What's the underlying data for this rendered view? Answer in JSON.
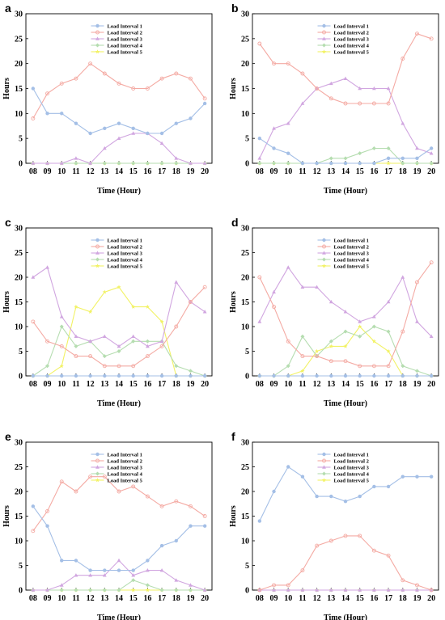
{
  "series_names": [
    "Load Interval 1",
    "Load Interval 2",
    "Load Interval 3",
    "Load Interval 4",
    "Load Interval 5"
  ],
  "series_colors": [
    "#a4bfe6",
    "#f4aaa3",
    "#d1a6e0",
    "#b5ddb0",
    "#f2f265"
  ],
  "chart_data": [
    {
      "panel": "a",
      "type": "line",
      "x": [
        "08",
        "09",
        "10",
        "11",
        "12",
        "13",
        "14",
        "15",
        "16",
        "17",
        "18",
        "19",
        "20"
      ],
      "xlabel": "Time (Hour)",
      "ylabel": "Hours",
      "ylim": [
        0,
        30
      ],
      "yticks": [
        0,
        5,
        10,
        15,
        20,
        25,
        30
      ],
      "legend": "top-center",
      "grid": false,
      "series": [
        {
          "name": "Load Interval 1",
          "values": [
            15,
            10,
            10,
            8,
            6,
            7,
            8,
            7,
            6,
            6,
            8,
            9,
            12
          ]
        },
        {
          "name": "Load Interval 2",
          "values": [
            9,
            14,
            16,
            17,
            20,
            18,
            16,
            15,
            15,
            17,
            18,
            17,
            13
          ]
        },
        {
          "name": "Load Interval 3",
          "values": [
            0,
            0,
            0,
            1,
            0,
            3,
            5,
            6,
            6,
            4,
            1,
            0,
            0
          ]
        },
        {
          "name": "Load Interval 4",
          "values": [
            0,
            0,
            0,
            0,
            0,
            0,
            0,
            0,
            0,
            0,
            0,
            0,
            0
          ]
        },
        {
          "name": "Load Interval 5",
          "values": [
            0,
            0,
            0,
            0,
            0,
            0,
            0,
            0,
            0,
            0,
            0,
            0,
            0
          ]
        }
      ]
    },
    {
      "panel": "b",
      "type": "line",
      "x": [
        "08",
        "09",
        "10",
        "11",
        "12",
        "13",
        "14",
        "15",
        "16",
        "17",
        "18",
        "19",
        "20"
      ],
      "xlabel": "Time (Hour)",
      "ylabel": "Hours",
      "ylim": [
        0,
        30
      ],
      "yticks": [
        0,
        5,
        10,
        15,
        20,
        25,
        30
      ],
      "legend": "top-center",
      "grid": false,
      "series": [
        {
          "name": "Load Interval 1",
          "values": [
            5,
            3,
            2,
            0,
            0,
            0,
            0,
            0,
            0,
            1,
            1,
            1,
            3
          ]
        },
        {
          "name": "Load Interval 2",
          "values": [
            24,
            20,
            20,
            18,
            15,
            13,
            12,
            12,
            12,
            12,
            21,
            26,
            25
          ]
        },
        {
          "name": "Load Interval 3",
          "values": [
            1,
            7,
            8,
            12,
            15,
            16,
            17,
            15,
            15,
            15,
            8,
            3,
            2
          ]
        },
        {
          "name": "Load Interval 4",
          "values": [
            0,
            0,
            0,
            0,
            0,
            1,
            1,
            2,
            3,
            3,
            0,
            0,
            0
          ]
        },
        {
          "name": "Load Interval 5",
          "values": [
            0,
            0,
            0,
            0,
            0,
            0,
            0,
            0,
            0,
            0,
            0,
            0,
            0
          ]
        }
      ]
    },
    {
      "panel": "c",
      "type": "line",
      "x": [
        "08",
        "09",
        "10",
        "11",
        "12",
        "13",
        "14",
        "15",
        "16",
        "17",
        "18",
        "19",
        "20"
      ],
      "xlabel": "Time (Hour)",
      "ylabel": "Hours",
      "ylim": [
        0,
        30
      ],
      "yticks": [
        0,
        5,
        10,
        15,
        20,
        25,
        30
      ],
      "legend": "top-center",
      "grid": false,
      "series": [
        {
          "name": "Load Interval 1",
          "values": [
            0,
            0,
            0,
            0,
            0,
            0,
            0,
            0,
            0,
            0,
            0,
            0,
            0
          ]
        },
        {
          "name": "Load Interval 2",
          "values": [
            11,
            7,
            6,
            4,
            4,
            2,
            2,
            2,
            4,
            6,
            10,
            15,
            18
          ]
        },
        {
          "name": "Load Interval 3",
          "values": [
            20,
            22,
            12,
            8,
            7,
            8,
            6,
            8,
            6,
            7,
            19,
            15,
            13
          ]
        },
        {
          "name": "Load Interval 4",
          "values": [
            0,
            2,
            10,
            6,
            7,
            4,
            5,
            7,
            7,
            7,
            2,
            1,
            0
          ]
        },
        {
          "name": "Load Interval 5",
          "values": [
            0,
            0,
            2,
            14,
            13,
            17,
            18,
            14,
            14,
            11,
            0,
            0,
            0
          ]
        }
      ]
    },
    {
      "panel": "d",
      "type": "line",
      "x": [
        "08",
        "09",
        "10",
        "11",
        "12",
        "13",
        "14",
        "15",
        "16",
        "17",
        "18",
        "19",
        "20"
      ],
      "xlabel": "Time (Hour)",
      "ylabel": "Hours",
      "ylim": [
        0,
        30
      ],
      "yticks": [
        0,
        5,
        10,
        15,
        20,
        25,
        30
      ],
      "legend": "top-center",
      "grid": false,
      "series": [
        {
          "name": "Load Interval 1",
          "values": [
            0,
            0,
            0,
            0,
            0,
            0,
            0,
            0,
            0,
            0,
            0,
            0,
            0
          ]
        },
        {
          "name": "Load Interval 2",
          "values": [
            20,
            14,
            7,
            4,
            4,
            3,
            3,
            2,
            2,
            2,
            9,
            19,
            23
          ]
        },
        {
          "name": "Load Interval 3",
          "values": [
            11,
            17,
            22,
            18,
            18,
            15,
            13,
            11,
            12,
            15,
            20,
            11,
            8
          ]
        },
        {
          "name": "Load Interval 4",
          "values": [
            0,
            0,
            2,
            8,
            4,
            7,
            9,
            8,
            10,
            9,
            2,
            1,
            0
          ]
        },
        {
          "name": "Load Interval 5",
          "values": [
            0,
            0,
            0,
            1,
            5,
            6,
            6,
            10,
            7,
            5,
            0,
            0,
            0
          ]
        }
      ]
    },
    {
      "panel": "e",
      "type": "line",
      "x": [
        "08",
        "09",
        "10",
        "11",
        "12",
        "13",
        "14",
        "15",
        "16",
        "17",
        "18",
        "19",
        "20"
      ],
      "xlabel": "Time (Hour)",
      "ylabel": "Hours",
      "ylim": [
        0,
        30
      ],
      "yticks": [
        0,
        5,
        10,
        15,
        20,
        25,
        30
      ],
      "legend": "top-center",
      "grid": false,
      "series": [
        {
          "name": "Load Interval 1",
          "values": [
            17,
            13,
            6,
            6,
            4,
            4,
            4,
            4,
            6,
            9,
            10,
            13,
            13
          ]
        },
        {
          "name": "Load Interval 2",
          "values": [
            12,
            16,
            22,
            20,
            23,
            23,
            20,
            21,
            19,
            17,
            18,
            17,
            15
          ]
        },
        {
          "name": "Load Interval 3",
          "values": [
            0,
            0,
            1,
            3,
            3,
            3,
            6,
            3,
            4,
            4,
            2,
            1,
            0
          ]
        },
        {
          "name": "Load Interval 4",
          "values": [
            0,
            0,
            0,
            0,
            0,
            0,
            0,
            2,
            1,
            0,
            0,
            0,
            0
          ]
        },
        {
          "name": "Load Interval 5",
          "values": [
            0,
            0,
            0,
            0,
            0,
            0,
            0,
            0,
            0,
            0,
            0,
            0,
            0
          ]
        }
      ]
    },
    {
      "panel": "f",
      "type": "line",
      "x": [
        "08",
        "09",
        "10",
        "11",
        "12",
        "13",
        "14",
        "15",
        "16",
        "17",
        "18",
        "19",
        "20"
      ],
      "xlabel": "Time (Hour)",
      "ylabel": "Hours",
      "ylim": [
        0,
        30
      ],
      "yticks": [
        0,
        5,
        10,
        15,
        20,
        25,
        30
      ],
      "legend": "top-center",
      "grid": false,
      "series": [
        {
          "name": "Load Interval 1",
          "values": [
            14,
            20,
            25,
            23,
            19,
            19,
            18,
            19,
            21,
            21,
            23,
            23,
            23
          ]
        },
        {
          "name": "Load Interval 2",
          "values": [
            0,
            1,
            1,
            4,
            9,
            10,
            11,
            11,
            8,
            7,
            2,
            1,
            0
          ]
        },
        {
          "name": "Load Interval 3",
          "values": [
            0,
            0,
            0,
            0,
            0,
            0,
            0,
            0,
            0,
            0,
            0,
            0,
            0
          ]
        },
        {
          "name": "Load Interval 4",
          "values": [
            0,
            0,
            0,
            0,
            0,
            0,
            0,
            0,
            0,
            0,
            0,
            0,
            0
          ]
        },
        {
          "name": "Load Interval 5",
          "values": [
            0,
            0,
            0,
            0,
            0,
            0,
            0,
            0,
            0,
            0,
            0,
            0,
            0
          ]
        }
      ]
    }
  ]
}
